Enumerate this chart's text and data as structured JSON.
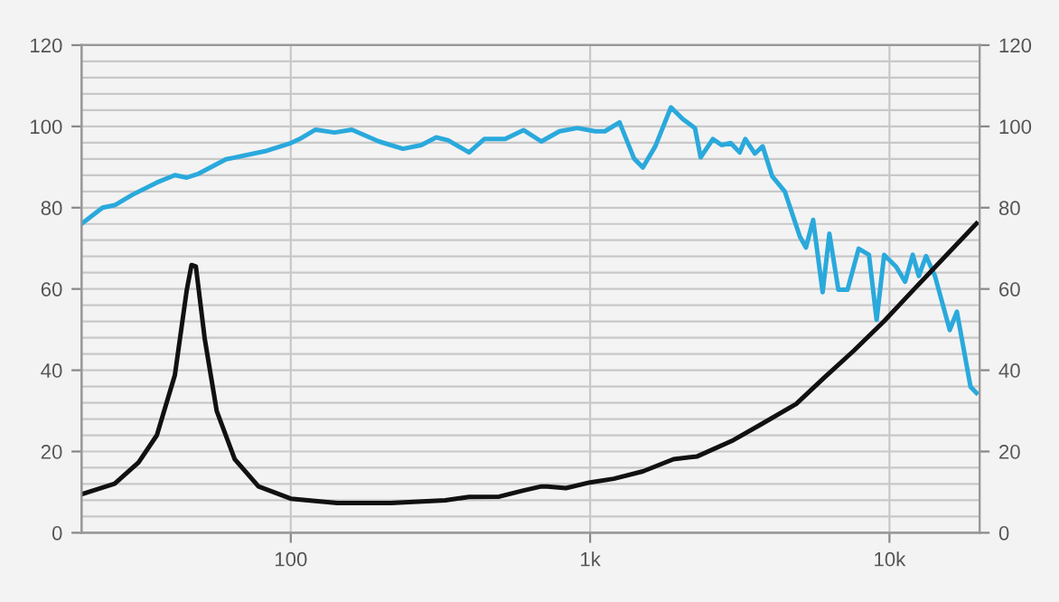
{
  "chart_data": {
    "type": "line",
    "log": "x",
    "grid": true,
    "marker": "none",
    "line_style": "solid",
    "xlim": [
      20,
      20000
    ],
    "xticks": [
      100,
      {
        "value": 1000,
        "label": "1k"
      },
      {
        "value": 10000,
        "label": "10k"
      }
    ],
    "ylim": [
      0,
      120
    ],
    "yticks": [
      0,
      20,
      40,
      60,
      80,
      100,
      120
    ],
    "y2lim": [
      0,
      120
    ],
    "y2ticks": [
      0,
      20,
      40,
      60,
      80,
      100,
      120
    ],
    "series": [
      {
        "color": "#2aa9dc",
        "x": [
          20,
          23.5,
          25.8,
          29.6,
          35.7,
          41,
          44.9,
          49.3,
          60.7,
          82,
          100,
          107,
          121,
          140,
          160,
          197,
          237,
          273,
          306,
          335,
          394,
          443,
          520,
          599,
          687,
          790,
          906,
          1040,
          1120,
          1254,
          1402,
          1500,
          1651,
          1862,
          2040,
          2240,
          2340,
          2570,
          2750,
          2950,
          3160,
          3300,
          3550,
          3770,
          4060,
          4470,
          5020,
          5260,
          5560,
          5980,
          6300,
          6750,
          7240,
          7890,
          8540,
          9060,
          9600,
          10520,
          11280,
          11960,
          12530,
          13250,
          14190,
          15900,
          16800,
          18660,
          19530
        ],
        "values": [
          76,
          80,
          80.6,
          83.2,
          86.2,
          88,
          87.4,
          88.4,
          91.9,
          93.9,
          95.9,
          96.9,
          99.2,
          98.5,
          99.2,
          96.3,
          94.5,
          95.4,
          97.3,
          96.6,
          93.6,
          96.9,
          96.9,
          99.1,
          96.3,
          98.8,
          99.6,
          98.8,
          98.8,
          101,
          92.1,
          89.9,
          95.1,
          104.7,
          101.8,
          99.6,
          92.4,
          96.9,
          95.4,
          95.9,
          93.6,
          96.9,
          93.3,
          95.1,
          87.7,
          84,
          72.9,
          70.2,
          77,
          59.2,
          73.6,
          59.8,
          59.8,
          69.9,
          68.4,
          52.4,
          68.4,
          65.5,
          61.8,
          68.4,
          63.2,
          68.1,
          63.2,
          49.9,
          54.4,
          35.9,
          34.4
        ]
      },
      {
        "color": "#111111",
        "x": [
          20,
          25.8,
          31,
          35.7,
          41,
          44.9,
          46.6,
          48.2,
          51.6,
          56.6,
          65,
          78,
          100,
          143,
          216,
          328,
          394,
          497,
          599,
          687,
          720,
          830,
          1000,
          1200,
          1500,
          1900,
          2280,
          3010,
          3790,
          4880,
          6040,
          7600,
          9600,
          12070,
          15220,
          19530
        ],
        "values": [
          9.5,
          12.1,
          17.3,
          24,
          38.8,
          59.6,
          65.9,
          65.5,
          47.7,
          29.9,
          18.1,
          11.4,
          8.4,
          7.3,
          7.3,
          8,
          8.8,
          8.9,
          10.4,
          11.4,
          11.4,
          11,
          12.4,
          13.3,
          15.1,
          18.1,
          18.8,
          22.8,
          27,
          31.7,
          38.1,
          44.8,
          52.1,
          59.9,
          67.7,
          76.1
        ]
      }
    ]
  }
}
